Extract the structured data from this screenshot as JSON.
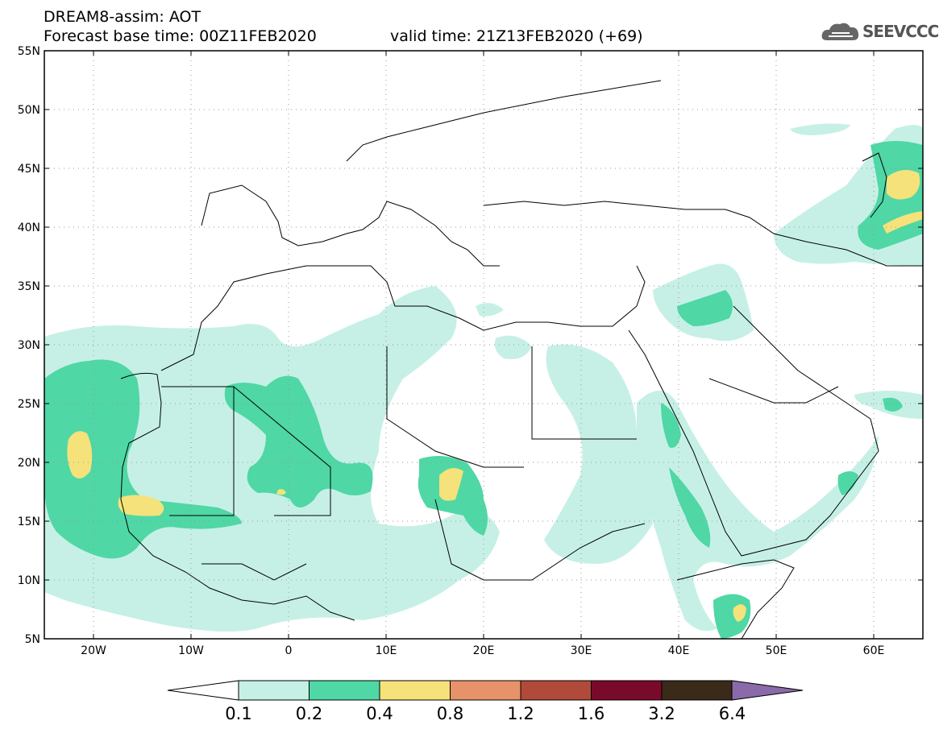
{
  "header": {
    "line1": "DREAM8-assim: AOT",
    "base_time": "Forecast base time: 00Z11FEB2020",
    "valid_time": "valid time: 21Z13FEB2020 (+69)",
    "logo_text": "SEEVCCC"
  },
  "map": {
    "lat_labels": [
      "55N",
      "50N",
      "45N",
      "40N",
      "35N",
      "30N",
      "25N",
      "20N",
      "15N",
      "10N",
      "5N"
    ],
    "lon_labels": [
      "20W",
      "10W",
      "0",
      "10E",
      "20E",
      "30E",
      "40E",
      "50E",
      "60E"
    ],
    "lon_range": [
      -25,
      65
    ],
    "lat_range": [
      5,
      55
    ]
  },
  "colorbar": {
    "labels": [
      "0.1",
      "0.2",
      "0.4",
      "0.8",
      "1.2",
      "1.6",
      "3.2",
      "6.4"
    ],
    "colors": [
      "#c6f0e6",
      "#4fd7a6",
      "#f5e27a",
      "#e8926a",
      "#b04a3a",
      "#7a0a2a",
      "#3a2a1a",
      "#8a6aa8"
    ]
  }
}
